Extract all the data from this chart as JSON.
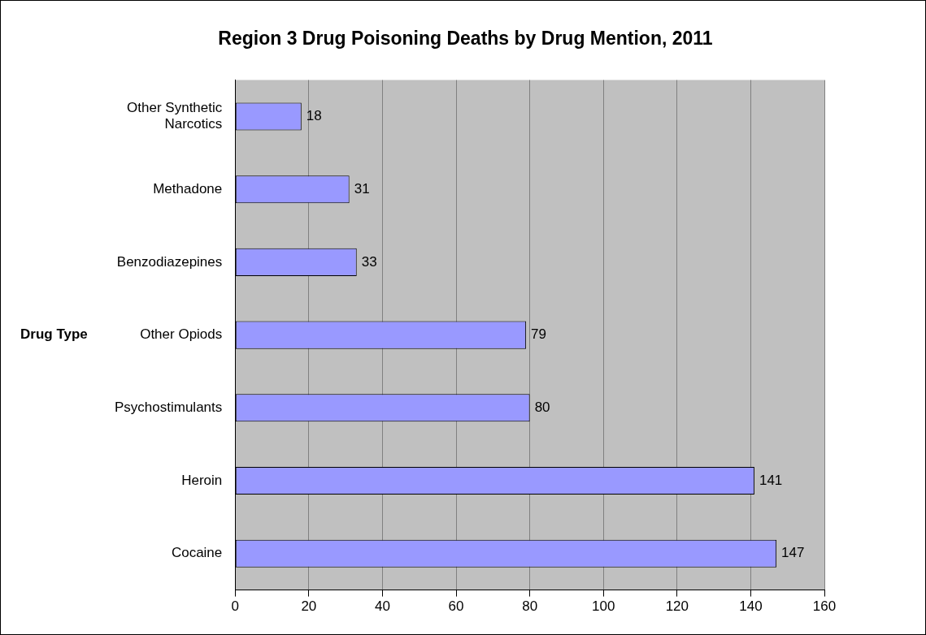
{
  "chart_data": {
    "type": "bar",
    "orientation": "horizontal",
    "title": "Region 3 Drug Poisoning Deaths by Drug Mention, 2011",
    "ylabel": "Drug Type",
    "categories": [
      "Other Synthetic Narcotics",
      "Methadone",
      "Benzodiazepines",
      "Other Opiods",
      "Psychostimulants",
      "Heroin",
      "Cocaine"
    ],
    "values": [
      18,
      31,
      33,
      79,
      80,
      141,
      147
    ],
    "color": "#9999ff",
    "xlim": [
      0,
      160
    ],
    "xticks": [
      0,
      20,
      40,
      60,
      80,
      100,
      120,
      140,
      160
    ],
    "grid": "x",
    "data_labels": true,
    "legend": false
  }
}
